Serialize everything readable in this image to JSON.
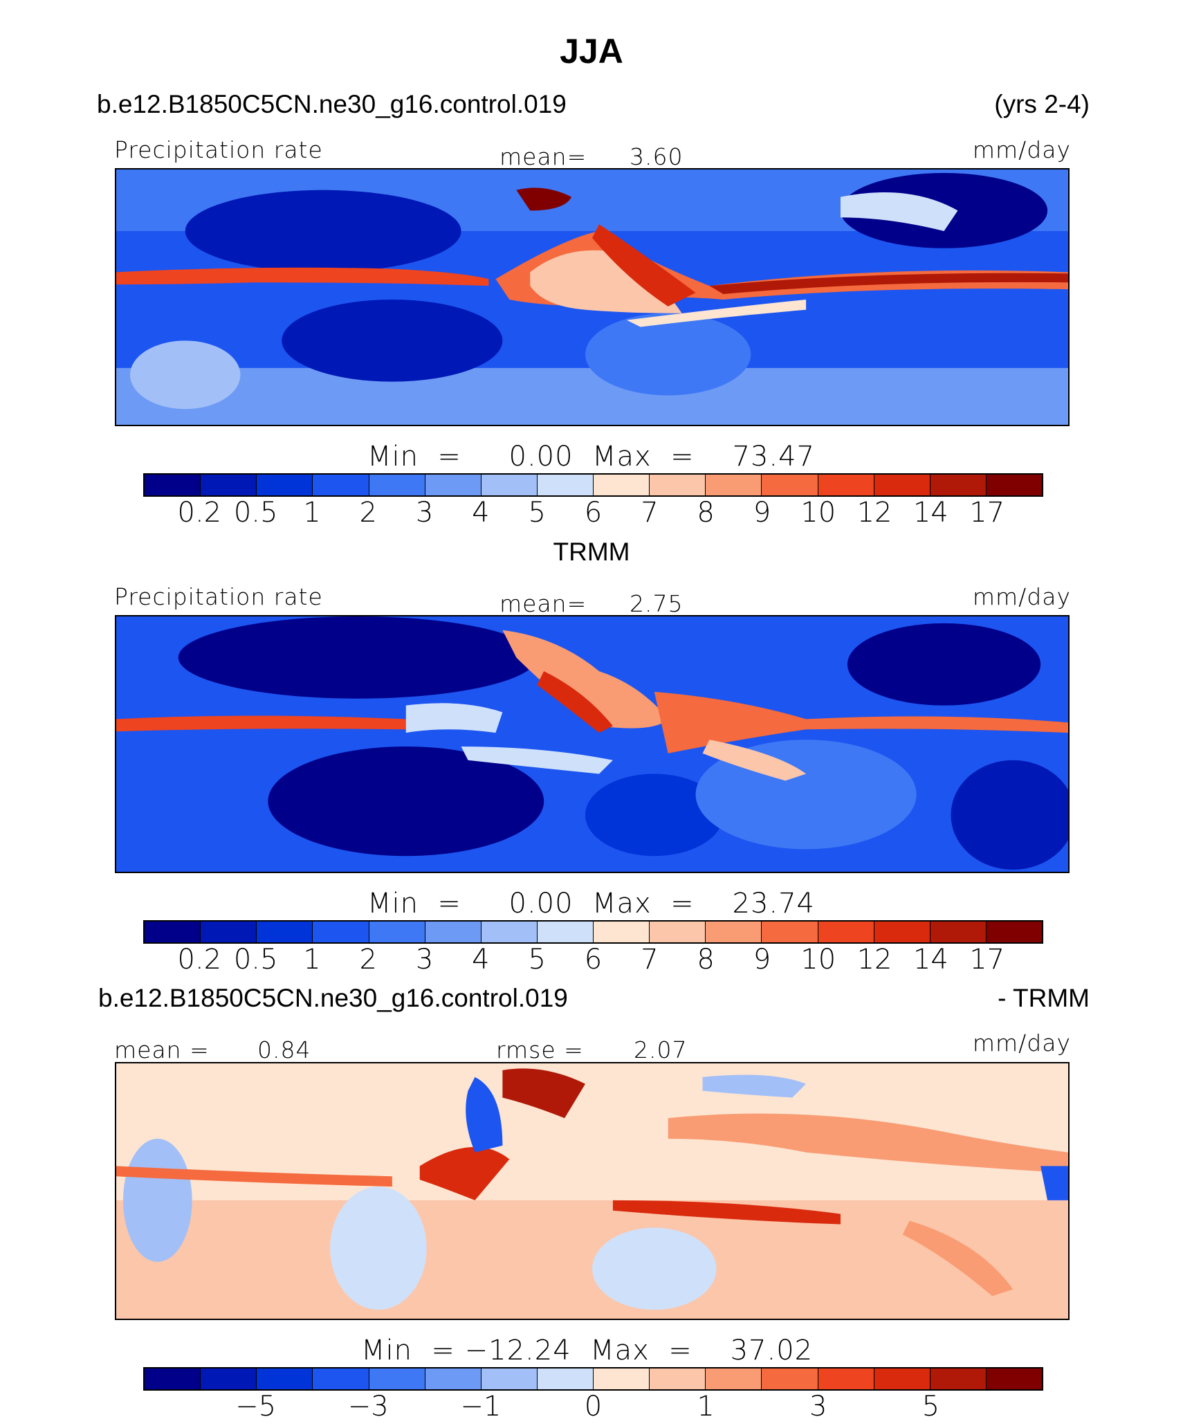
{
  "title": "JJA",
  "header1": {
    "case": "b.e12.B1850C5CN.ne30_g16.control.019",
    "years": "(yrs 2-4)"
  },
  "panel1": {
    "label": "Precipitation rate",
    "mean_label": "mean=",
    "mean": "3.60",
    "units": "mm/day",
    "minmax": "Min  =     0.00  Max  =    73.47"
  },
  "header2": {
    "title": "TRMM"
  },
  "panel2": {
    "label": "Precipitation rate",
    "mean_label": "mean=",
    "mean": "2.75",
    "units": "mm/day",
    "minmax": "Min  =     0.00  Max  =    23.74"
  },
  "header3": {
    "case": "b.e12.B1850C5CN.ne30_g16.control.019",
    "suffix": "- TRMM"
  },
  "panel3": {
    "mean_label": "mean  =",
    "mean": "0.84",
    "rmse_label": "rmse  =",
    "rmse": "2.07",
    "units": "mm/day",
    "minmax": "Min  = −12.24  Max  =    37.02"
  },
  "colorbar_colors": [
    "#00008a",
    "#0018b5",
    "#0033d8",
    "#1d55f0",
    "#3f78f5",
    "#6d9af5",
    "#a2c0f7",
    "#cfe1fa",
    "#fde5d2",
    "#fcc6aa",
    "#f99c73",
    "#f56a3e",
    "#ee4420",
    "#d92a0d",
    "#b01807",
    "#800000"
  ],
  "colorbar_precip_ticks": [
    "0.2",
    "0.5",
    "1",
    "2",
    "3",
    "4",
    "5",
    "6",
    "7",
    "8",
    "9",
    "10",
    "12",
    "14",
    "17"
  ],
  "colorbar_diff_ticks": [
    "−5",
    "−3",
    "−1",
    "0",
    "1",
    "3",
    "5"
  ],
  "colorbar_diff_tick_positions": [
    1,
    3,
    5,
    7,
    9,
    11,
    13
  ]
}
